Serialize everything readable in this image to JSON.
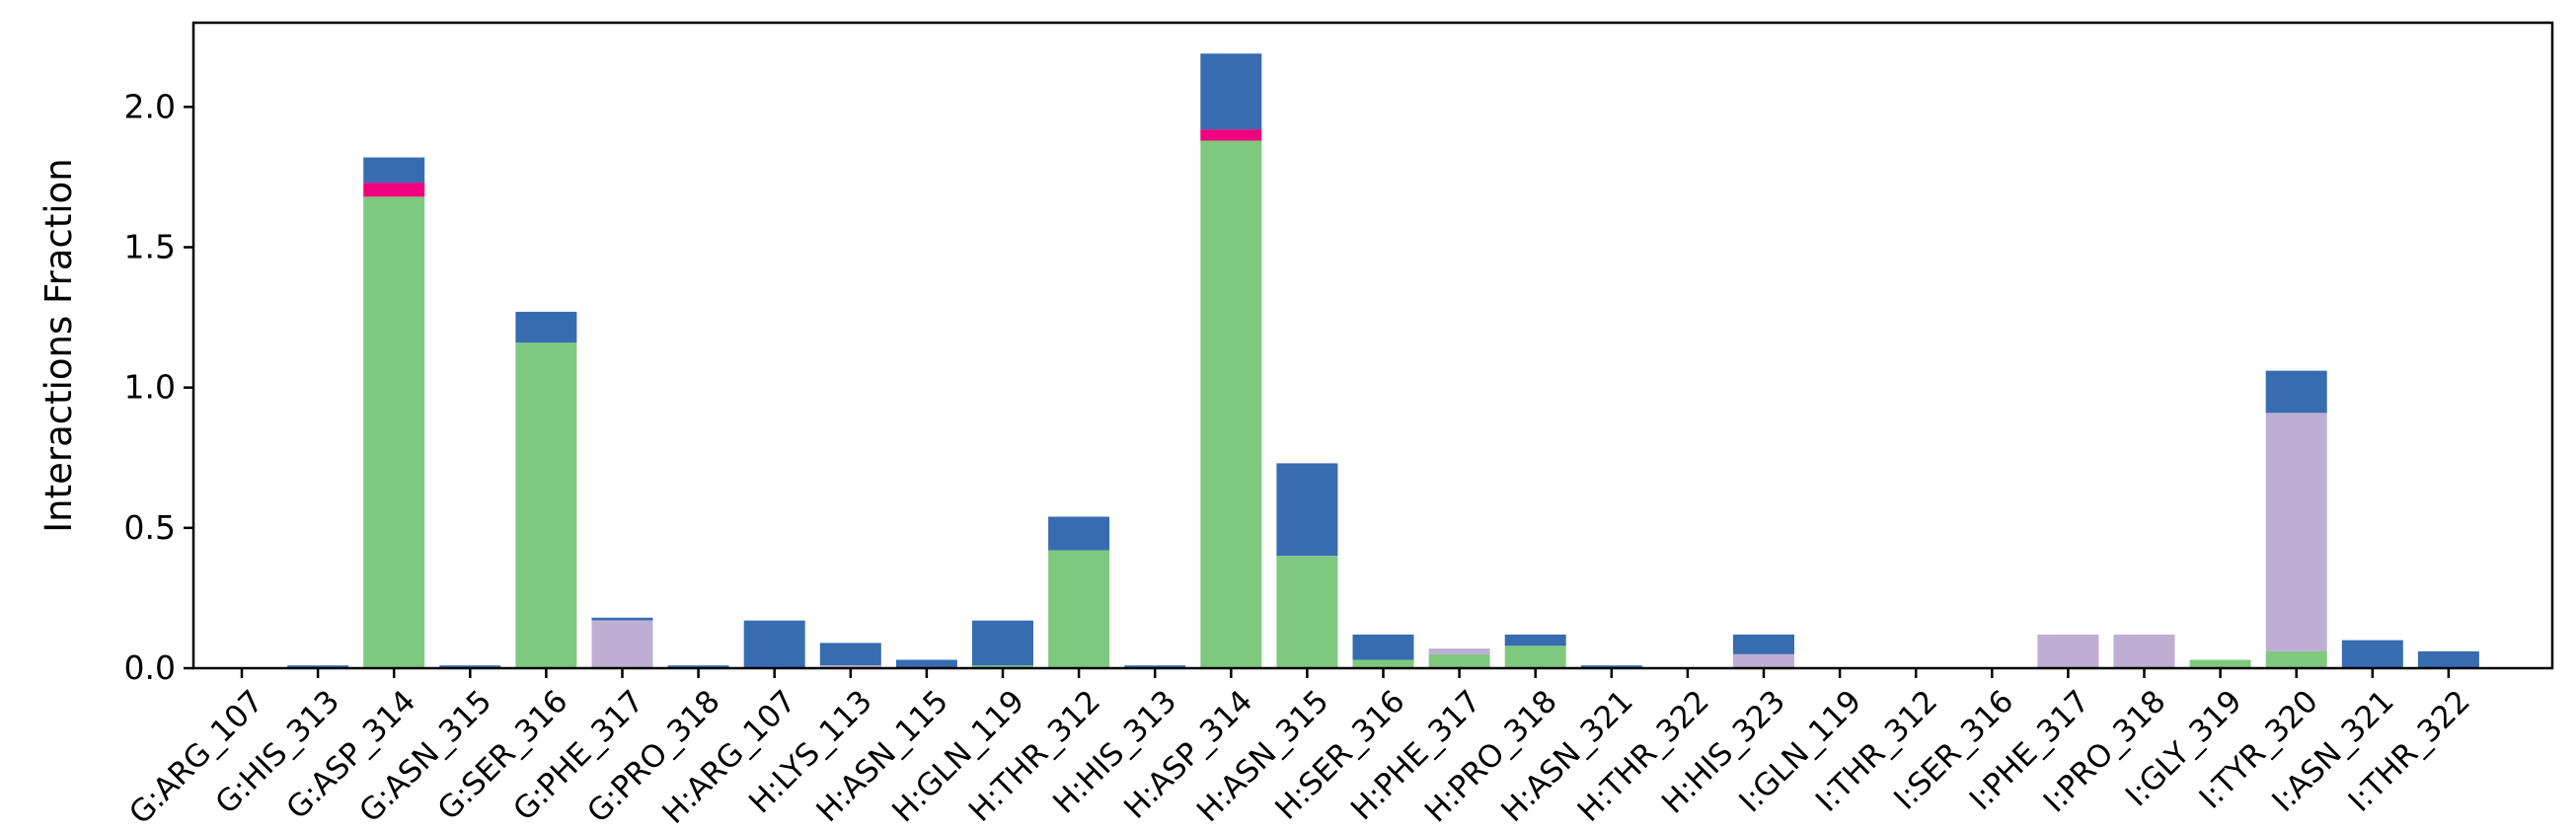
{
  "chart_data": {
    "type": "bar",
    "stacked": true,
    "ylabel": "Interactions Fraction",
    "xlabel": "",
    "ylim": [
      0,
      2.3
    ],
    "yticks": [
      "0.0",
      "0.5",
      "1.0",
      "1.5",
      "2.0"
    ],
    "grid": false,
    "legend": "none",
    "categories": [
      "G:ARG_107",
      "G:HIS_313",
      "G:ASP_314",
      "G:ASN_315",
      "G:SER_316",
      "G:PHE_317",
      "G:PRO_318",
      "H:ARG_107",
      "H:LYS_113",
      "H:ASN_115",
      "H:GLN_119",
      "H:THR_312",
      "H:HIS_313",
      "H:ASP_314",
      "H:ASN_315",
      "H:SER_316",
      "H:PHE_317",
      "H:PRO_318",
      "H:ASN_321",
      "H:THR_322",
      "H:HIS_323",
      "I:GLN_119",
      "I:THR_312",
      "I:SER_316",
      "I:PHE_317",
      "I:PRO_318",
      "I:GLY_319",
      "I:TYR_320",
      "I:ASN_321",
      "I:THR_322"
    ],
    "series": [
      {
        "key": "green",
        "color": "#7fc97f",
        "values": [
          0,
          0,
          1.68,
          0,
          1.16,
          0,
          0,
          0,
          0,
          0,
          0.01,
          0.42,
          0,
          1.88,
          0.4,
          0.03,
          0.05,
          0.08,
          0,
          0,
          0,
          0,
          0,
          0,
          0,
          0,
          0.03,
          0.06,
          0,
          0
        ]
      },
      {
        "key": "purple",
        "color": "#beaed4",
        "values": [
          0,
          0,
          0,
          0,
          0,
          0.17,
          0,
          0,
          0.01,
          0,
          0,
          0,
          0,
          0,
          0,
          0,
          0.02,
          0,
          0,
          0,
          0.05,
          0,
          0,
          0,
          0.12,
          0.12,
          0,
          0.85,
          0,
          0
        ]
      },
      {
        "key": "pink",
        "color": "#f0027f",
        "values": [
          0,
          0,
          0.05,
          0,
          0,
          0,
          0,
          0,
          0,
          0,
          0,
          0,
          0,
          0.04,
          0,
          0,
          0,
          0,
          0,
          0,
          0,
          0,
          0,
          0,
          0,
          0,
          0,
          0,
          0,
          0
        ]
      },
      {
        "key": "blue",
        "color": "#386cb0",
        "values": [
          0,
          0.01,
          0.09,
          0.01,
          0.11,
          0.01,
          0.01,
          0.17,
          0.08,
          0.03,
          0.16,
          0.12,
          0.01,
          0.27,
          0.33,
          0.09,
          0,
          0.04,
          0.01,
          0,
          0.07,
          0,
          0,
          0,
          0,
          0,
          0,
          0.15,
          0.1,
          0.06
        ]
      }
    ]
  }
}
